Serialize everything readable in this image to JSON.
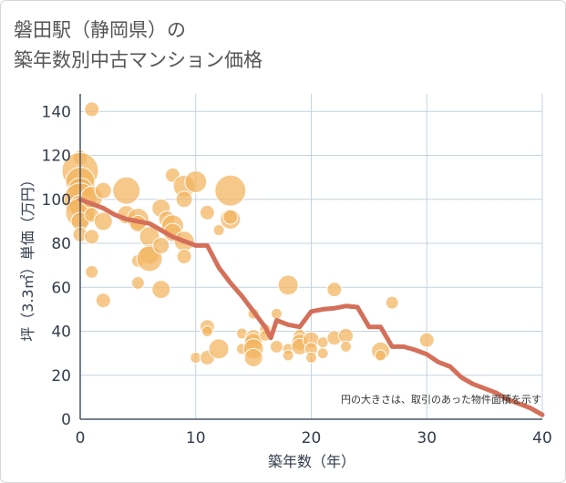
{
  "title_lines": [
    "磐田駅（静岡県）の",
    "築年数別中古マンション価格"
  ],
  "chart_data": {
    "type": "scatter",
    "title": "磐田駅（静岡県）の築年数別中古マンション価格",
    "xlabel": "築年数（年）",
    "ylabel": "坪（3.3㎡）単価（万円）",
    "xlim": [
      0,
      40
    ],
    "ylim": [
      0,
      148
    ],
    "xticks": [
      0,
      10,
      20,
      30,
      40
    ],
    "yticks": [
      0,
      20,
      40,
      60,
      80,
      100,
      120,
      140
    ],
    "grid": true,
    "annotation": "円の大きさは、取引のあった物件面積を示す",
    "colors": {
      "bubble": "#f2b45e",
      "line": "#d4705a",
      "grid": "#c5d3df",
      "axis": "#4a5566"
    },
    "points": [
      {
        "x": 0,
        "y": 119,
        "size": 8
      },
      {
        "x": 0,
        "y": 113,
        "size": 20
      },
      {
        "x": 0,
        "y": 108,
        "size": 16
      },
      {
        "x": 0,
        "y": 104,
        "size": 14
      },
      {
        "x": 0,
        "y": 100,
        "size": 18
      },
      {
        "x": 0,
        "y": 97,
        "size": 12
      },
      {
        "x": 0,
        "y": 94,
        "size": 16
      },
      {
        "x": 0,
        "y": 90,
        "size": 10
      },
      {
        "x": 0,
        "y": 84,
        "size": 8
      },
      {
        "x": 1,
        "y": 141,
        "size": 8
      },
      {
        "x": 1,
        "y": 101,
        "size": 12
      },
      {
        "x": 1,
        "y": 93,
        "size": 8
      },
      {
        "x": 1,
        "y": 83,
        "size": 8
      },
      {
        "x": 1,
        "y": 67,
        "size": 7
      },
      {
        "x": 2,
        "y": 104,
        "size": 9
      },
      {
        "x": 2,
        "y": 90,
        "size": 10
      },
      {
        "x": 2,
        "y": 54,
        "size": 8
      },
      {
        "x": 4,
        "y": 104,
        "size": 15
      },
      {
        "x": 4,
        "y": 93,
        "size": 10
      },
      {
        "x": 5,
        "y": 91,
        "size": 12
      },
      {
        "x": 5,
        "y": 89,
        "size": 9
      },
      {
        "x": 5,
        "y": 72,
        "size": 7
      },
      {
        "x": 5,
        "y": 62,
        "size": 7
      },
      {
        "x": 6,
        "y": 83,
        "size": 11
      },
      {
        "x": 6,
        "y": 75,
        "size": 11
      },
      {
        "x": 6,
        "y": 73,
        "size": 14
      },
      {
        "x": 7,
        "y": 96,
        "size": 10
      },
      {
        "x": 7,
        "y": 79,
        "size": 9
      },
      {
        "x": 7,
        "y": 59,
        "size": 10
      },
      {
        "x": 7.5,
        "y": 91,
        "size": 9
      },
      {
        "x": 8,
        "y": 111,
        "size": 8
      },
      {
        "x": 8,
        "y": 88,
        "size": 12
      },
      {
        "x": 8,
        "y": 85,
        "size": 10
      },
      {
        "x": 9,
        "y": 106,
        "size": 12
      },
      {
        "x": 9,
        "y": 100,
        "size": 9
      },
      {
        "x": 9,
        "y": 81,
        "size": 11
      },
      {
        "x": 9,
        "y": 74,
        "size": 8
      },
      {
        "x": 10,
        "y": 108,
        "size": 12
      },
      {
        "x": 10,
        "y": 28,
        "size": 6
      },
      {
        "x": 11,
        "y": 94,
        "size": 8
      },
      {
        "x": 11,
        "y": 42,
        "size": 8
      },
      {
        "x": 11,
        "y": 40,
        "size": 6
      },
      {
        "x": 11,
        "y": 28,
        "size": 8
      },
      {
        "x": 12,
        "y": 86,
        "size": 6
      },
      {
        "x": 12,
        "y": 32,
        "size": 11
      },
      {
        "x": 13,
        "y": 104,
        "size": 17
      },
      {
        "x": 13,
        "y": 91,
        "size": 11
      },
      {
        "x": 13,
        "y": 92,
        "size": 8
      },
      {
        "x": 14,
        "y": 39,
        "size": 6
      },
      {
        "x": 14,
        "y": 32,
        "size": 6
      },
      {
        "x": 15,
        "y": 48,
        "size": 6
      },
      {
        "x": 15,
        "y": 37,
        "size": 9
      },
      {
        "x": 15,
        "y": 35,
        "size": 10
      },
      {
        "x": 15,
        "y": 32,
        "size": 11
      },
      {
        "x": 15,
        "y": 28,
        "size": 10
      },
      {
        "x": 16,
        "y": 41,
        "size": 6
      },
      {
        "x": 16,
        "y": 38,
        "size": 6
      },
      {
        "x": 17,
        "y": 48,
        "size": 6
      },
      {
        "x": 17,
        "y": 33,
        "size": 7
      },
      {
        "x": 18,
        "y": 61,
        "size": 11
      },
      {
        "x": 18,
        "y": 32,
        "size": 6
      },
      {
        "x": 18,
        "y": 29,
        "size": 6
      },
      {
        "x": 19,
        "y": 38,
        "size": 7
      },
      {
        "x": 19,
        "y": 35,
        "size": 9
      },
      {
        "x": 19,
        "y": 33,
        "size": 9
      },
      {
        "x": 20,
        "y": 36,
        "size": 9
      },
      {
        "x": 20,
        "y": 32,
        "size": 7
      },
      {
        "x": 20,
        "y": 28,
        "size": 6
      },
      {
        "x": 21,
        "y": 35,
        "size": 6
      },
      {
        "x": 21,
        "y": 30,
        "size": 6
      },
      {
        "x": 22,
        "y": 59,
        "size": 8
      },
      {
        "x": 22,
        "y": 37,
        "size": 8
      },
      {
        "x": 23,
        "y": 38,
        "size": 8
      },
      {
        "x": 23,
        "y": 33,
        "size": 6
      },
      {
        "x": 26,
        "y": 31,
        "size": 10
      },
      {
        "x": 26,
        "y": 29,
        "size": 6
      },
      {
        "x": 27,
        "y": 53,
        "size": 7
      },
      {
        "x": 30,
        "y": 36,
        "size": 8
      }
    ],
    "trend_line": {
      "x": [
        0,
        1,
        2,
        3,
        4,
        5,
        6,
        7,
        8,
        9,
        10,
        11,
        12,
        13,
        14,
        15,
        16,
        16.5,
        17,
        18,
        19,
        20,
        21,
        22,
        23,
        24,
        25,
        26,
        27,
        28,
        29,
        30,
        31,
        32,
        33,
        34,
        35,
        36,
        37,
        38,
        39,
        40
      ],
      "y": [
        100,
        98,
        96,
        93,
        91,
        90,
        89,
        86,
        83,
        81,
        79,
        79,
        69,
        62,
        56,
        49,
        42,
        37,
        45,
        43,
        42,
        49,
        50,
        50.5,
        51.5,
        51,
        42,
        42,
        33,
        33,
        31.5,
        29.5,
        26,
        24,
        19,
        16,
        14,
        12,
        9,
        7,
        5,
        2
      ]
    }
  }
}
